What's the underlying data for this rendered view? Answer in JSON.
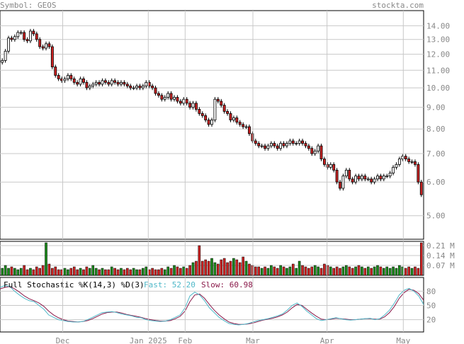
{
  "header": {
    "symbol_label": "Symbol: GEOS",
    "brand": "stockta.com"
  },
  "colors": {
    "up": "#ffffff",
    "down": "#cc2222",
    "vol_up": "#1a8a1a",
    "vol_down": "#cc2222",
    "fast": "#4fb8c8",
    "slow": "#8a1a4a",
    "grid": "#c8c8c8",
    "text": "#888888"
  },
  "chart_data": [
    {
      "type": "candlestick",
      "title": "",
      "y_scale": "log",
      "ylim": [
        4.4,
        15.2
      ],
      "yticks": [
        "14.00",
        "13.00",
        "12.00",
        "11.00",
        "10.00",
        "9.00",
        "8.00",
        "7.00",
        "6.00",
        "5.00"
      ],
      "xticks": [
        "Dec",
        "Jan 2025",
        "Feb",
        "Mar",
        "Apr",
        "May"
      ],
      "grid": true,
      "closes": [
        11.6,
        12.2,
        13.1,
        13.0,
        13.2,
        13.5,
        13.5,
        13.0,
        12.9,
        13.6,
        13.4,
        13.0,
        12.5,
        12.4,
        12.7,
        12.5,
        11.2,
        10.7,
        10.5,
        10.4,
        10.5,
        10.7,
        10.5,
        10.3,
        10.2,
        10.5,
        10.3,
        10.0,
        10.1,
        10.2,
        10.3,
        10.2,
        10.4,
        10.3,
        10.2,
        10.4,
        10.3,
        10.2,
        10.3,
        10.2,
        10.1,
        10.0,
        10.0,
        10.1,
        10.0,
        10.1,
        10.3,
        10.1,
        10.0,
        9.7,
        9.6,
        9.4,
        9.5,
        9.7,
        9.4,
        9.5,
        9.3,
        9.2,
        9.4,
        9.2,
        9.0,
        9.2,
        8.9,
        8.7,
        8.6,
        8.4,
        8.2,
        8.4,
        9.4,
        9.3,
        9.1,
        8.8,
        8.7,
        8.4,
        8.5,
        8.3,
        8.2,
        8.1,
        8.1,
        7.8,
        7.5,
        7.4,
        7.3,
        7.3,
        7.2,
        7.3,
        7.4,
        7.3,
        7.2,
        7.4,
        7.3,
        7.4,
        7.5,
        7.4,
        7.4,
        7.5,
        7.4,
        7.3,
        7.2,
        7.0,
        7.1,
        7.3,
        6.8,
        6.6,
        6.5,
        6.6,
        6.4,
        6.0,
        5.8,
        6.2,
        6.4,
        6.1,
        6.0,
        6.2,
        6.1,
        6.2,
        6.1,
        6.1,
        6.0,
        6.1,
        6.2,
        6.1,
        6.2,
        6.2,
        6.3,
        6.5,
        6.6,
        6.8,
        6.9,
        6.8,
        6.7,
        6.7,
        6.6,
        6.0,
        5.6
      ]
    },
    {
      "type": "bar",
      "title": "",
      "yticks": [
        "0.21 M",
        "0.14 M",
        "0.07 M"
      ],
      "ylim": [
        0,
        0.24
      ],
      "volumes": [
        0.05,
        0.07,
        0.05,
        0.06,
        0.05,
        0.04,
        0.05,
        0.07,
        0.04,
        0.05,
        0.04,
        0.06,
        0.05,
        0.07,
        0.23,
        0.08,
        0.05,
        0.06,
        0.04,
        0.04,
        0.05,
        0.04,
        0.05,
        0.06,
        0.04,
        0.05,
        0.04,
        0.06,
        0.05,
        0.07,
        0.05,
        0.04,
        0.05,
        0.04,
        0.04,
        0.06,
        0.05,
        0.04,
        0.05,
        0.04,
        0.05,
        0.04,
        0.05,
        0.04,
        0.04,
        0.05,
        0.06,
        0.04,
        0.05,
        0.04,
        0.04,
        0.05,
        0.04,
        0.06,
        0.05,
        0.07,
        0.06,
        0.05,
        0.06,
        0.05,
        0.07,
        0.09,
        0.1,
        0.21,
        0.1,
        0.11,
        0.1,
        0.12,
        0.09,
        0.08,
        0.11,
        0.12,
        0.09,
        0.1,
        0.12,
        0.11,
        0.09,
        0.13,
        0.1,
        0.08,
        0.07,
        0.06,
        0.06,
        0.05,
        0.06,
        0.05,
        0.07,
        0.06,
        0.05,
        0.07,
        0.06,
        0.05,
        0.06,
        0.08,
        0.05,
        0.1,
        0.07,
        0.06,
        0.05,
        0.06,
        0.07,
        0.06,
        0.05,
        0.08,
        0.07,
        0.06,
        0.05,
        0.06,
        0.05,
        0.06,
        0.07,
        0.06,
        0.05,
        0.06,
        0.07,
        0.06,
        0.05,
        0.06,
        0.05,
        0.06,
        0.07,
        0.06,
        0.05,
        0.06,
        0.05,
        0.06,
        0.05,
        0.07,
        0.06,
        0.05,
        0.06,
        0.05,
        0.06,
        0.05,
        0.23
      ]
    },
    {
      "type": "line",
      "title": "Full Stochastic %K(14,3) %D(3)",
      "ylim": [
        0,
        100
      ],
      "yticks": [
        "80",
        "50",
        "20"
      ],
      "series": [
        {
          "name": "Fast",
          "value_label": "Fast: 52.20"
        },
        {
          "name": "Slow",
          "value_label": "Slow: 60.98"
        }
      ],
      "fast": [
        88,
        92,
        90,
        80,
        72,
        65,
        60,
        58,
        50,
        42,
        30,
        25,
        20,
        18,
        16,
        15,
        15,
        16,
        20,
        25,
        30,
        35,
        36,
        37,
        35,
        32,
        30,
        28,
        25,
        24,
        20,
        18,
        17,
        16,
        17,
        20,
        25,
        30,
        45,
        70,
        78,
        72,
        60,
        45,
        35,
        25,
        18,
        12,
        10,
        9,
        10,
        12,
        15,
        18,
        20,
        22,
        25,
        28,
        32,
        40,
        50,
        55,
        48,
        38,
        30,
        22,
        18,
        20,
        22,
        24,
        22,
        20,
        19,
        20,
        21,
        22,
        23,
        20,
        22,
        30,
        40,
        55,
        72,
        82,
        86,
        80,
        70,
        52
      ],
      "slow": [
        85,
        88,
        90,
        85,
        78,
        70,
        64,
        60,
        55,
        48,
        38,
        30,
        24,
        20,
        17,
        16,
        15,
        16,
        18,
        22,
        27,
        32,
        35,
        36,
        36,
        34,
        31,
        29,
        27,
        25,
        22,
        20,
        18,
        17,
        17,
        18,
        22,
        27,
        38,
        58,
        72,
        74,
        65,
        52,
        40,
        30,
        22,
        15,
        12,
        10,
        10,
        11,
        13,
        16,
        19,
        21,
        23,
        26,
        30,
        36,
        45,
        52,
        50,
        42,
        34,
        27,
        21,
        20,
        21,
        23,
        22,
        21,
        20,
        20,
        21,
        22,
        22,
        21,
        21,
        26,
        35,
        48,
        65,
        77,
        84,
        82,
        75,
        61
      ]
    }
  ]
}
